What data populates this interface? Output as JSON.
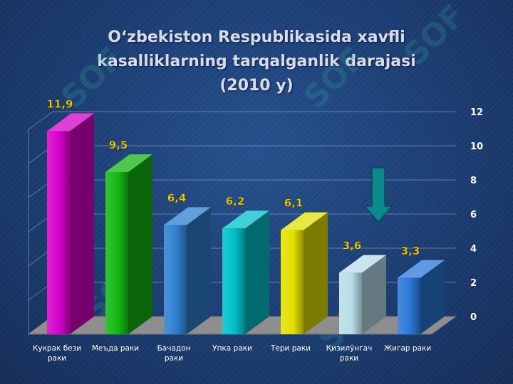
{
  "title": {
    "line1": "O‘zbekiston Respublikasida xavfli",
    "line2": "kasalliklarning tarqalganlik darajasi",
    "line3": "(2010 y)"
  },
  "watermark_text": "SOF",
  "colors": {
    "background": "#1b3f78",
    "value_label": "#f0d000",
    "axis_text": "#ffffff",
    "category_text": "#ffffff"
  },
  "chart_data": {
    "type": "bar",
    "title": "O‘zbekiston Respublikasida xavfli kasalliklarning tarqalganlik darajasi (2010 y)",
    "categories": [
      "Кукрак бези раки",
      "Меъда раки",
      "Бачадон раки",
      "Упка раки",
      "Тери раки",
      "Қизилўнгач раки",
      "Жигар раки"
    ],
    "category_lines": [
      [
        "Кукрак бези",
        "раки"
      ],
      [
        "Меъда раки"
      ],
      [
        "Бачадон",
        "раки"
      ],
      [
        "Упка раки"
      ],
      [
        "Тери раки"
      ],
      [
        "Қизилўнгач",
        "раки"
      ],
      [
        "Жигар раки"
      ]
    ],
    "values": [
      11.9,
      9.5,
      6.4,
      6.2,
      6.1,
      3.6,
      3.3
    ],
    "value_labels": [
      "11,9",
      "9,5",
      "6,4",
      "6,2",
      "6,1",
      "3,6",
      "3,3"
    ],
    "bar_colors": [
      "#d400c8",
      "#12b812",
      "#2f7fd0",
      "#00c0c8",
      "#e2e000",
      "#b8dce8",
      "#2a78d8"
    ],
    "ylim": [
      0,
      12
    ],
    "yticks": [
      0,
      2,
      4,
      6,
      8,
      10,
      12
    ],
    "y_axis_side": "right",
    "grid": true,
    "three_d": true
  }
}
